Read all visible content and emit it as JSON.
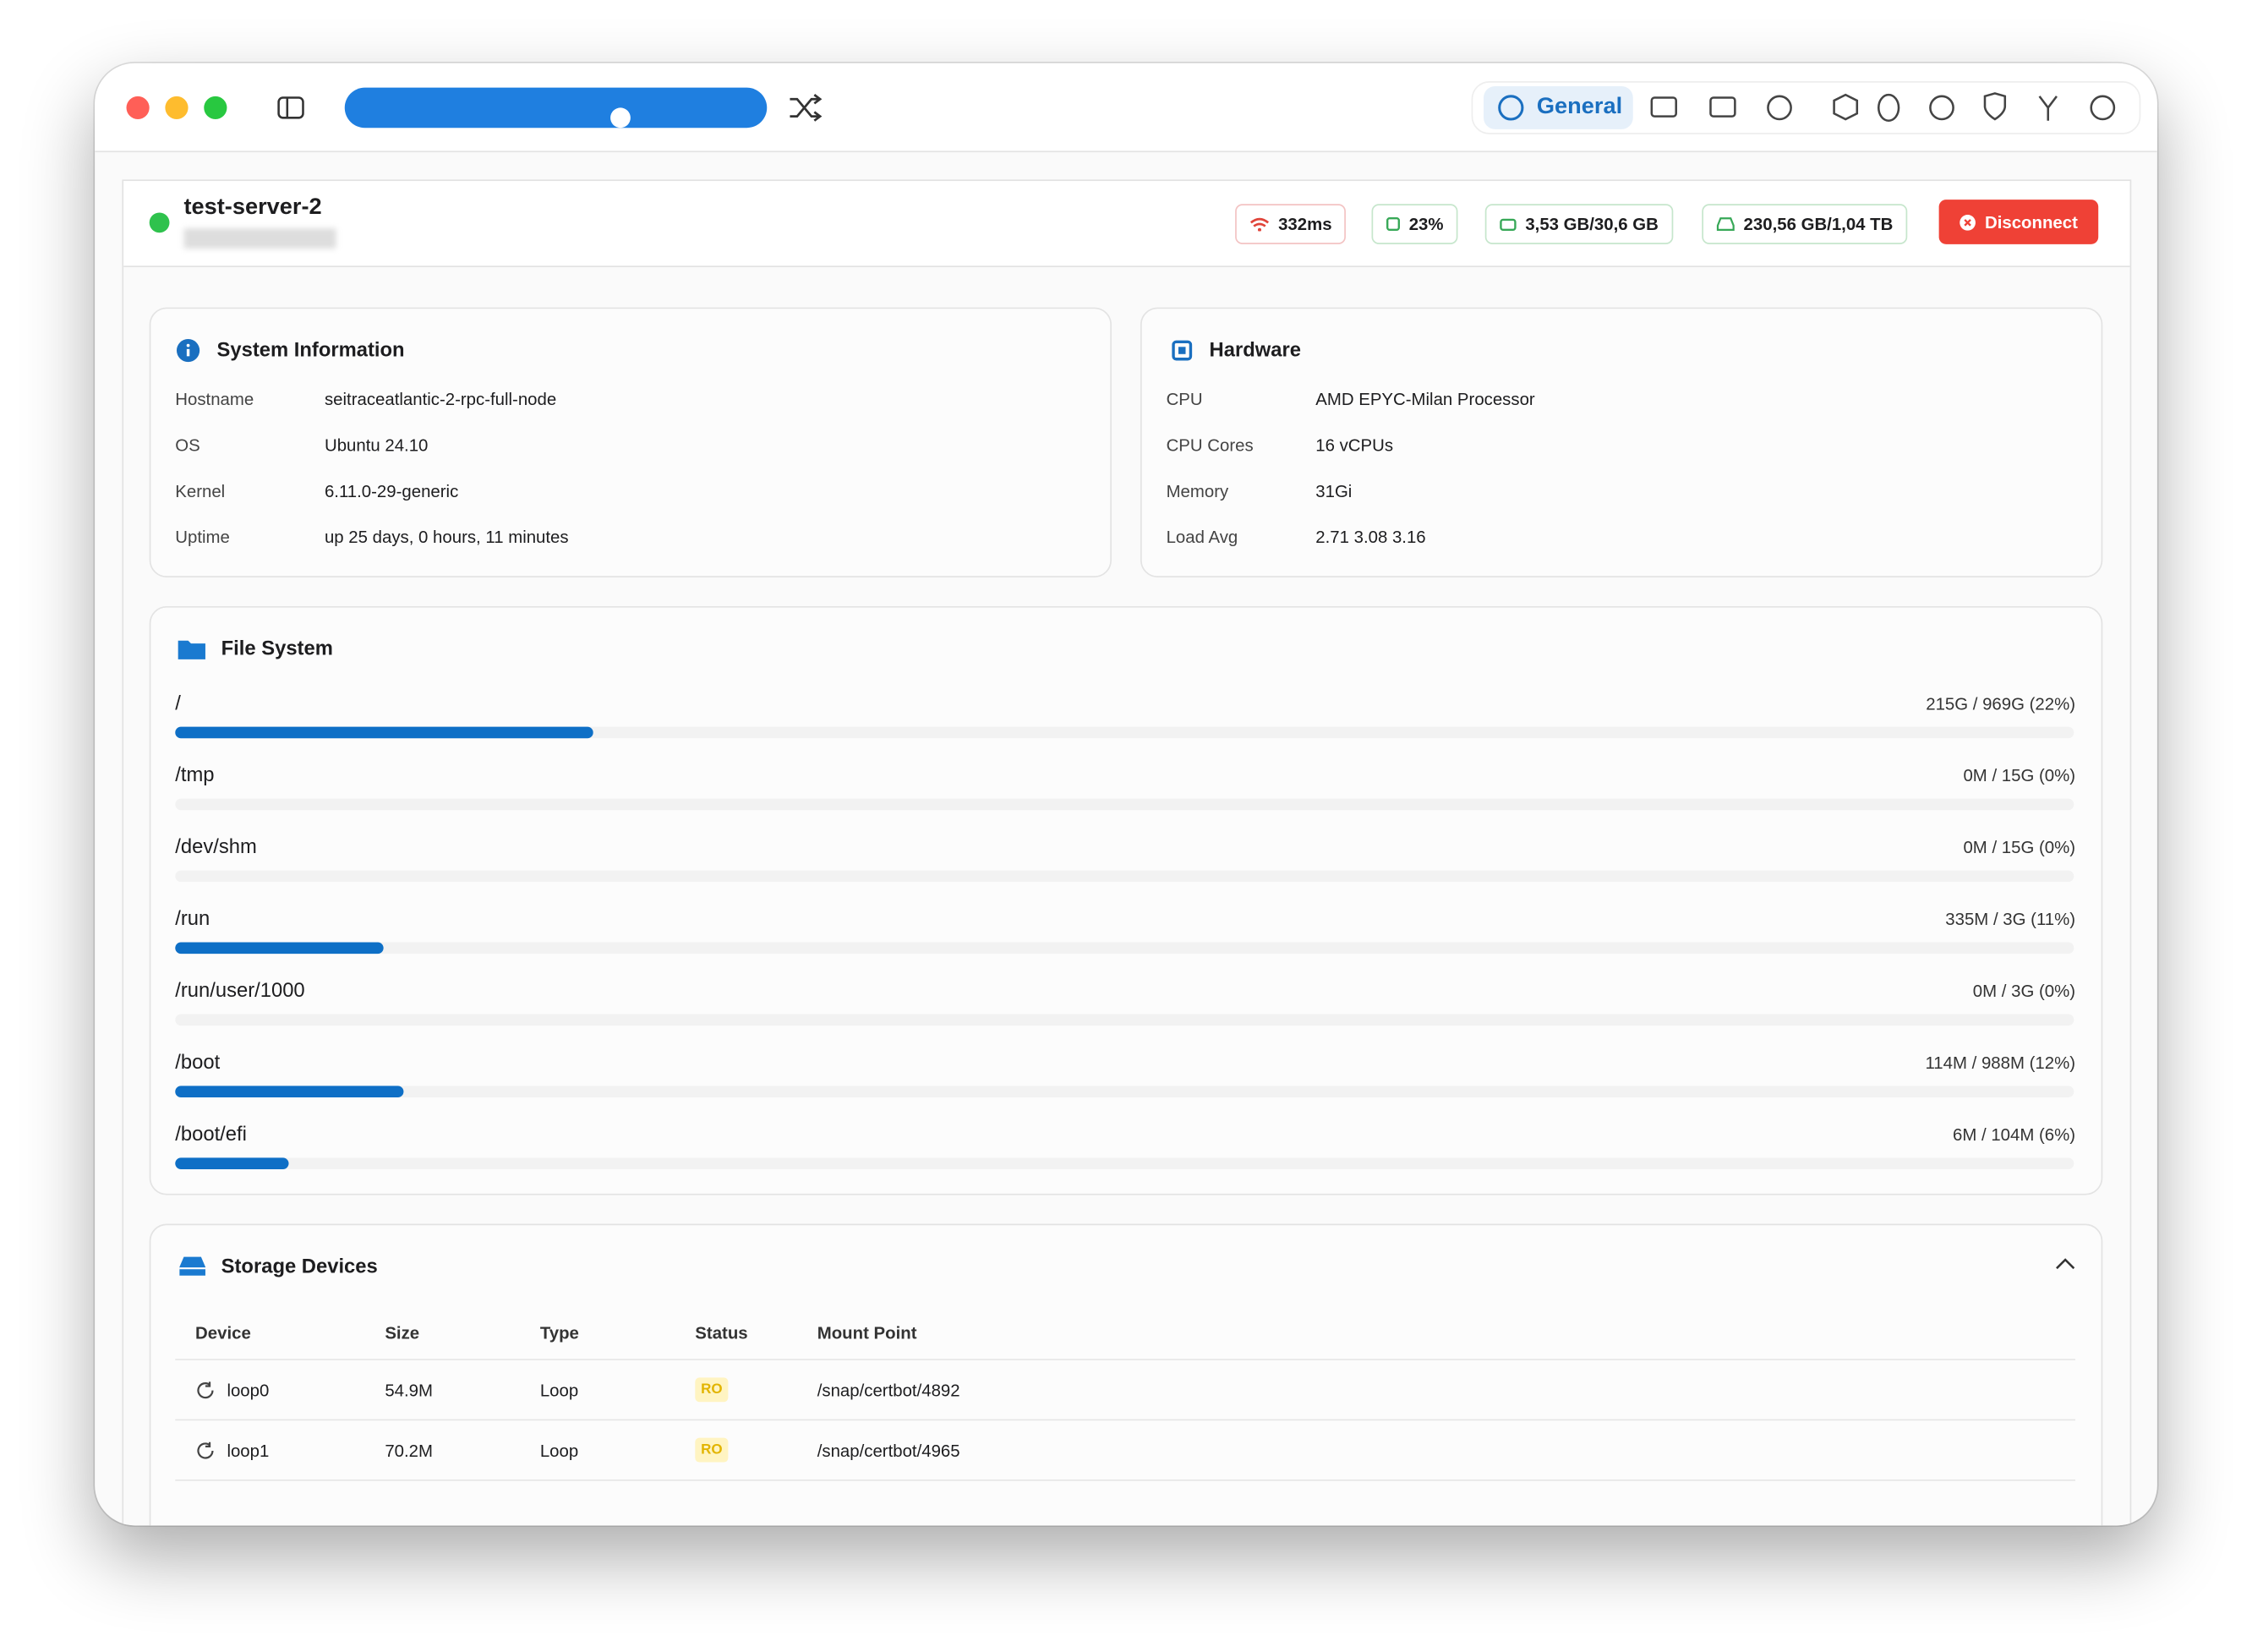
{
  "toolbar": {
    "active_tab": "General"
  },
  "server": {
    "name": "test-server-2",
    "stats": [
      "332ms",
      "23%",
      "3,53 GB/30,6 GB",
      "230,56 GB/1,04 TB"
    ],
    "disconnect": "Disconnect"
  },
  "system_information": {
    "title": "System Information",
    "rows": [
      [
        "Hostname",
        "seitraceatlantic-2-rpc-full-node"
      ],
      [
        "OS",
        "Ubuntu 24.10"
      ],
      [
        "Kernel",
        "6.11.0-29-generic"
      ],
      [
        "Uptime",
        "up 25 days, 0 hours, 11 minutes"
      ]
    ]
  },
  "hardware": {
    "title": "Hardware",
    "rows": [
      [
        "CPU",
        "AMD EPYC-Milan Processor"
      ],
      [
        "CPU Cores",
        "16 vCPUs"
      ],
      [
        "Memory",
        "31Gi"
      ],
      [
        "Load Avg",
        "2.71 3.08 3.16"
      ]
    ]
  },
  "file_system": {
    "title": "File System",
    "mounts": [
      {
        "path": "/",
        "usage": "215G / 969G (22%)",
        "percent": 22
      },
      {
        "path": "/tmp",
        "usage": "0M / 15G (0%)",
        "percent": 0
      },
      {
        "path": "/dev/shm",
        "usage": "0M / 15G (0%)",
        "percent": 0
      },
      {
        "path": "/run",
        "usage": "335M / 3G (11%)",
        "percent": 11
      },
      {
        "path": "/run/user/1000",
        "usage": "0M / 3G (0%)",
        "percent": 0
      },
      {
        "path": "/boot",
        "usage": "114M / 988M (12%)",
        "percent": 12
      },
      {
        "path": "/boot/efi",
        "usage": "6M / 104M (6%)",
        "percent": 6
      }
    ]
  },
  "storage_devices": {
    "title": "Storage Devices",
    "columns": [
      "Device",
      "Size",
      "Type",
      "Status",
      "Mount Point"
    ],
    "rows": [
      [
        "loop0",
        "54.9M",
        "Loop",
        "RO",
        "/snap/certbot/4892"
      ],
      [
        "loop1",
        "70.2M",
        "Loop",
        "RO",
        "/snap/certbot/4965"
      ]
    ]
  }
}
